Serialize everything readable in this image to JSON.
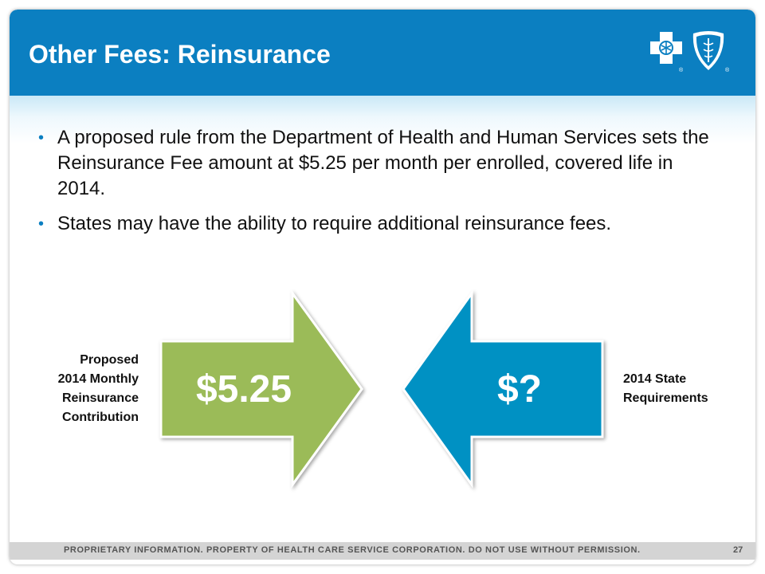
{
  "slide": {
    "title": "Other Fees: Reinsurance",
    "bullets": [
      "A proposed rule from the Department of Health and Human Services sets the Reinsurance Fee amount at $5.25 per month per enrolled, covered life in 2014.",
      "States may have the ability to require additional reinsurance fees."
    ],
    "bullet_glyph": "•",
    "left_arrow": {
      "value": "$5.25",
      "color": "#9bbb59"
    },
    "right_arrow": {
      "value": "$?",
      "color": "#0591c3"
    },
    "left_label_lines": [
      "Proposed",
      "2014 Monthly",
      "Reinsurance",
      "Contribution"
    ],
    "right_label_lines": [
      "2014 State",
      "Requirements"
    ]
  },
  "logos": {
    "cross_icon": "blue-cross-icon",
    "shield_icon": "blue-shield-icon",
    "registered_mark": "®"
  },
  "footer": {
    "text": "PROPRIETARY INFORMATION. PROPERTY OF HEALTH CARE SERVICE CORPORATION. DO NOT USE WITHOUT PERMISSION.",
    "page_number": "27"
  },
  "colors": {
    "header": "#0b7fc1",
    "footer": "#d4d4d4"
  }
}
